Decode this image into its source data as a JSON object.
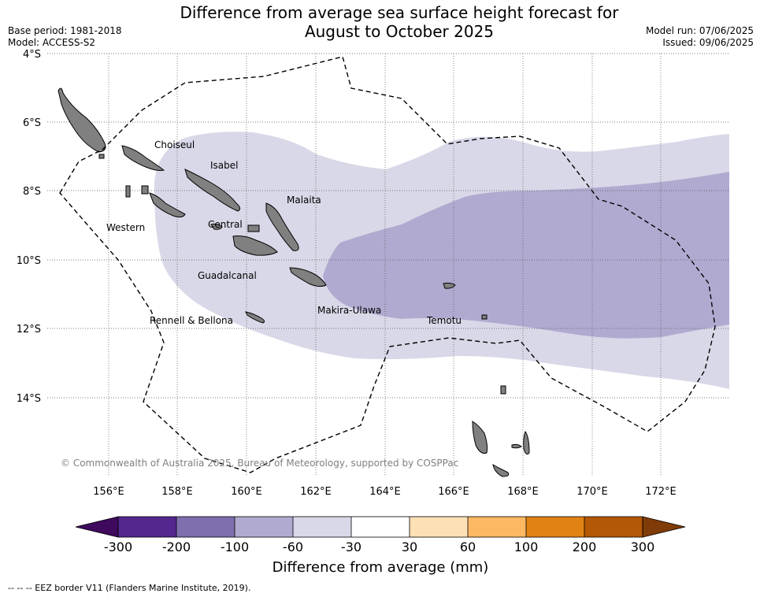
{
  "title_line1": "Difference from average sea surface height forecast for",
  "title_line2": "August to October 2025",
  "meta_left": [
    "Base period: 1981-2018",
    "Model: ACCESS-S2"
  ],
  "meta_right": [
    "Model run: 07/06/2025",
    "Issued: 09/06/2025"
  ],
  "map": {
    "lat_labels": [
      "4°S",
      "6°S",
      "8°S",
      "10°S",
      "12°S",
      "14°S"
    ],
    "lon_labels": [
      "156°E",
      "158°E",
      "160°E",
      "162°E",
      "164°E",
      "166°E",
      "168°E",
      "170°E",
      "172°E"
    ],
    "regions": [
      "Choiseul",
      "Isabel",
      "Malaita",
      "Western",
      "Central",
      "Guadalcanal",
      "Makira-Ulawa",
      "Rennell & Bellona",
      "Temotu"
    ],
    "copyright": "© Commonwealth of Australia 2025, Bureau of Meteorology, supported by COSPPac",
    "anomaly_colors": {
      "light_lavender": "#d8d8e8",
      "medium_lavender": "#b0aad0"
    }
  },
  "colorbar": {
    "title": "Difference from average (mm)",
    "ticks": [
      "-300",
      "-200",
      "-100",
      "-60",
      "-30",
      "30",
      "60",
      "100",
      "200",
      "300"
    ],
    "colors": [
      "#3f0a5e",
      "#54278f",
      "#7f6fae",
      "#b0aad0",
      "#d8d8e8",
      "#ffffff",
      "#fee0b6",
      "#fdb863",
      "#e08214",
      "#b35806",
      "#7f3b08"
    ]
  },
  "footer": "-- -- -- EEZ border V11 (Flanders Marine Institute, 2019)."
}
